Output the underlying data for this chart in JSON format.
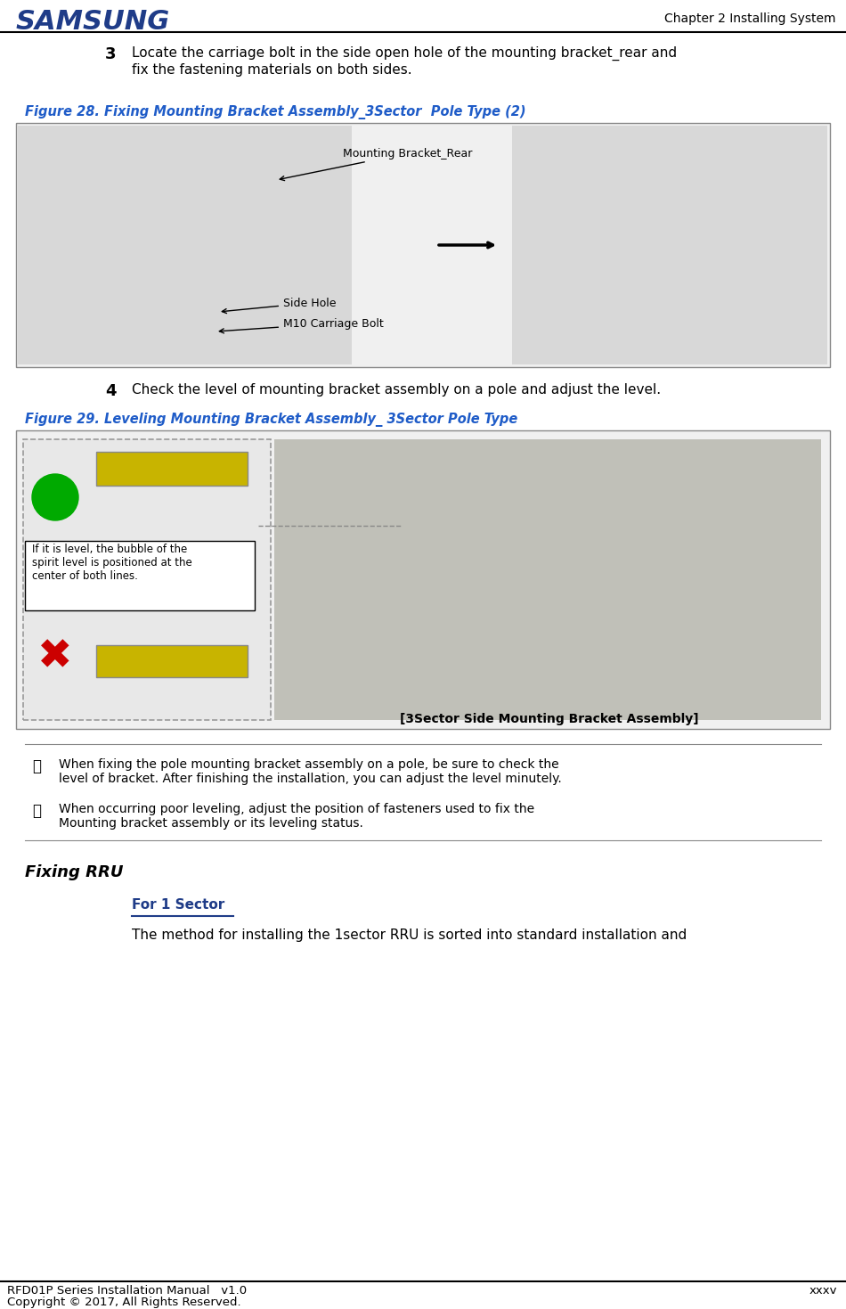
{
  "bg_color": "#ffffff",
  "header_line_color": "#000000",
  "samsung_text": "SAMSUNG",
  "samsung_color": "#1f3c88",
  "chapter_text": "Chapter 2 Installing System",
  "step3_number": "3",
  "step3_text": "Locate the carriage bolt in the side open hole of the mounting bracket_rear and\nfix the fastening materials on both sides.",
  "fig28_caption": "Figure 28. Fixing Mounting Bracket Assembly_3Sector  Pole Type (2)",
  "fig28_caption_color": "#1f5cc8",
  "label_mounting_bracket_rear": "Mounting Bracket_Rear",
  "label_side_hole": "Side Hole",
  "label_m10_bolt": "M10 Carriage Bolt",
  "step4_number": "4",
  "step4_text": "Check the level of mounting bracket assembly on a pole and adjust the level.",
  "fig29_caption": "Figure 29. Leveling Mounting Bracket Assembly_ 3Sector Pole Type",
  "fig29_caption_color": "#1f5cc8",
  "bubble_label": "If it is level, the bubble of the\nspirit level is positioned at the\ncenter of both lines.",
  "sector_label": "[3Sector Side Mounting Bracket Assembly]",
  "note1_text": "When fixing the pole mounting bracket assembly on a pole, be sure to check the\nlevel of bracket. After finishing the installation, you can adjust the level minutely.",
  "note2_text": "When occurring poor leveling, adjust the position of fasteners used to fix the\nMounting bracket assembly or its leveling status.",
  "fixing_rru_title": "Fixing RRU",
  "for_1sector_title": "For 1 Sector",
  "for_1sector_color": "#1f3c88",
  "last_text": "The method for installing the 1sector RRU is sorted into standard installation and",
  "footer_left": "RFD01P Series Installation Manual   v1.0",
  "footer_right": "xxxv",
  "footer_sub": "Copyright © 2017, All Rights Reserved.",
  "footer_line_color": "#000000"
}
